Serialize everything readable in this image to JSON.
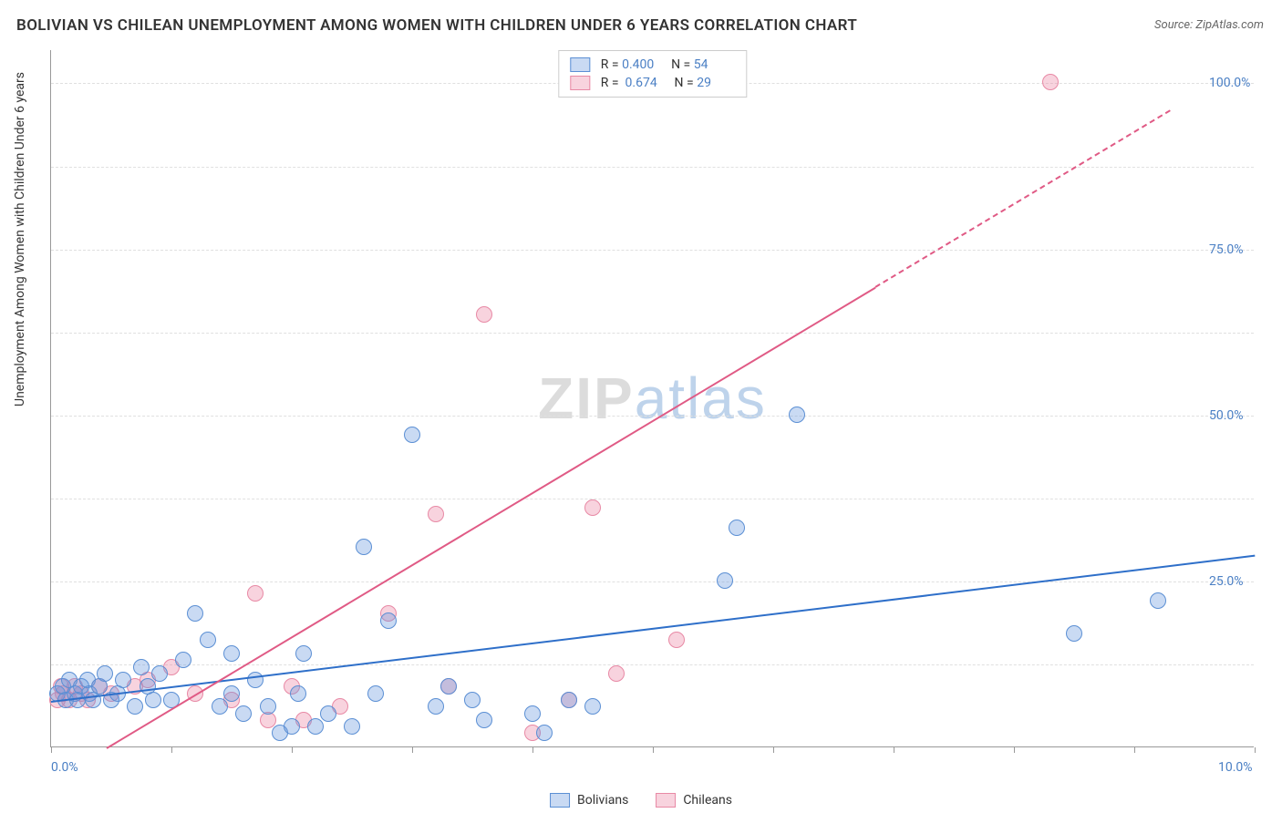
{
  "title": "BOLIVIAN VS CHILEAN UNEMPLOYMENT AMONG WOMEN WITH CHILDREN UNDER 6 YEARS CORRELATION CHART",
  "source": "Source: ZipAtlas.com",
  "y_axis_label": "Unemployment Among Women with Children Under 6 years",
  "watermark": {
    "part1": "ZIP",
    "part2": "atlas"
  },
  "chart": {
    "type": "scatter",
    "background_color": "#ffffff",
    "grid_color": "#e0e0e0",
    "axis_color": "#999999",
    "xlim": [
      0,
      10
    ],
    "ylim": [
      0,
      105
    ],
    "x_ticks": [
      0,
      1,
      2,
      3,
      4,
      5,
      6,
      7,
      8,
      9,
      10
    ],
    "y_ticks": [
      25,
      50,
      75,
      100
    ],
    "x_tick_labels": {
      "0": "0.0%",
      "10": "10.0%"
    },
    "y_tick_labels": {
      "25": "25.0%",
      "50": "50.0%",
      "75": "75.0%",
      "100": "100.0%"
    },
    "y_minor_gridlines": [
      12.5,
      25,
      37.5,
      50,
      62.5,
      75,
      87.5,
      100
    ]
  },
  "series": {
    "bolivians": {
      "label": "Bolivians",
      "R": "0.400",
      "N": "54",
      "fill": "rgba(100,150,220,0.35)",
      "stroke": "#5b8fd4",
      "line_color": "#2e6fc9",
      "marker_r": 9,
      "trend": {
        "x1": 0.0,
        "y1": 7.0,
        "x2": 10.0,
        "y2": 29.0,
        "dashed_from_x": null
      },
      "points": [
        [
          0.05,
          8
        ],
        [
          0.1,
          9
        ],
        [
          0.12,
          7
        ],
        [
          0.15,
          10
        ],
        [
          0.2,
          8
        ],
        [
          0.22,
          7
        ],
        [
          0.25,
          9
        ],
        [
          0.3,
          10
        ],
        [
          0.32,
          8
        ],
        [
          0.35,
          7
        ],
        [
          0.4,
          9
        ],
        [
          0.45,
          11
        ],
        [
          0.5,
          7
        ],
        [
          0.55,
          8
        ],
        [
          0.6,
          10
        ],
        [
          0.7,
          6
        ],
        [
          0.75,
          12
        ],
        [
          0.8,
          9
        ],
        [
          0.85,
          7
        ],
        [
          0.9,
          11
        ],
        [
          1.0,
          7
        ],
        [
          1.1,
          13
        ],
        [
          1.2,
          20
        ],
        [
          1.3,
          16
        ],
        [
          1.4,
          6
        ],
        [
          1.5,
          8
        ],
        [
          1.5,
          14
        ],
        [
          1.6,
          5
        ],
        [
          1.7,
          10
        ],
        [
          1.8,
          6
        ],
        [
          1.9,
          2
        ],
        [
          2.0,
          3
        ],
        [
          2.05,
          8
        ],
        [
          2.1,
          14
        ],
        [
          2.2,
          3
        ],
        [
          2.3,
          5
        ],
        [
          2.5,
          3
        ],
        [
          2.6,
          30
        ],
        [
          2.7,
          8
        ],
        [
          2.8,
          19
        ],
        [
          3.0,
          47
        ],
        [
          3.2,
          6
        ],
        [
          3.3,
          9
        ],
        [
          3.5,
          7
        ],
        [
          3.6,
          4
        ],
        [
          4.0,
          5
        ],
        [
          4.1,
          2
        ],
        [
          4.3,
          7
        ],
        [
          4.5,
          6
        ],
        [
          5.6,
          25
        ],
        [
          5.7,
          33
        ],
        [
          6.2,
          50
        ],
        [
          8.5,
          17
        ],
        [
          9.2,
          22
        ]
      ]
    },
    "chileans": {
      "label": "Chileans",
      "R": "0.674",
      "N": "29",
      "fill": "rgba(235,130,160,0.35)",
      "stroke": "#e889a5",
      "line_color": "#e05a85",
      "marker_r": 9,
      "trend": {
        "x1": 0.0,
        "y1": -5.0,
        "x2": 9.3,
        "y2": 96.0,
        "dashed_from_x": 6.85
      },
      "points": [
        [
          0.05,
          7
        ],
        [
          0.08,
          9
        ],
        [
          0.1,
          8
        ],
        [
          0.15,
          7
        ],
        [
          0.2,
          9
        ],
        [
          0.25,
          8
        ],
        [
          0.3,
          7
        ],
        [
          0.4,
          9
        ],
        [
          0.5,
          8
        ],
        [
          0.7,
          9
        ],
        [
          0.8,
          10
        ],
        [
          1.0,
          12
        ],
        [
          1.2,
          8
        ],
        [
          1.5,
          7
        ],
        [
          1.7,
          23
        ],
        [
          1.8,
          4
        ],
        [
          2.0,
          9
        ],
        [
          2.1,
          4
        ],
        [
          2.4,
          6
        ],
        [
          2.8,
          20
        ],
        [
          3.2,
          35
        ],
        [
          3.3,
          9
        ],
        [
          3.6,
          65
        ],
        [
          4.0,
          2
        ],
        [
          4.3,
          7
        ],
        [
          4.5,
          36
        ],
        [
          4.7,
          11
        ],
        [
          5.2,
          16
        ],
        [
          8.3,
          100
        ]
      ]
    }
  },
  "stats_legend_labels": {
    "R": "R =",
    "N": "N ="
  }
}
